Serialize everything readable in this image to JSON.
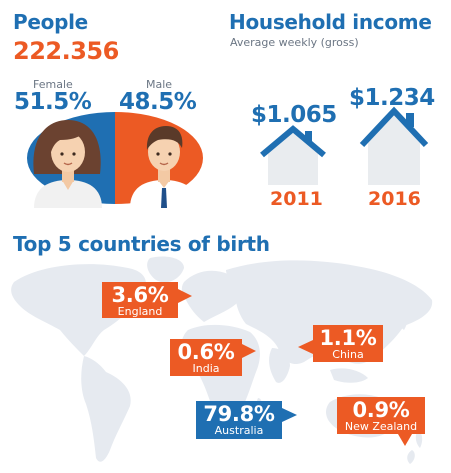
{
  "people": {
    "title": "People",
    "total": "222.356",
    "female_label": "Female",
    "female_pct": "51.5%",
    "male_label": "Male",
    "male_pct": "48.5%",
    "female_share": 0.515,
    "male_share": 0.485
  },
  "income": {
    "title": "Household income",
    "subtitle": "Average weekly (gross)",
    "items": [
      {
        "value": "$1.065",
        "year": "2011"
      },
      {
        "value": "$1.234",
        "year": "2016"
      }
    ]
  },
  "countries": {
    "title": "Top 5 countries of birth",
    "items": [
      {
        "pct": "3.6%",
        "name": "England"
      },
      {
        "pct": "1.1%",
        "name": "China"
      },
      {
        "pct": "0.6%",
        "name": "India"
      },
      {
        "pct": "79.8%",
        "name": "Australia"
      },
      {
        "pct": "0.9%",
        "name": "New Zealand"
      }
    ]
  },
  "colors": {
    "blue": "#1f6fb2",
    "orange": "#ec5a24",
    "map": "#e6eaf0",
    "house": "#e9ecef"
  },
  "icons": [
    "female-avatar-icon",
    "male-avatar-icon",
    "house-icon",
    "world-map"
  ]
}
